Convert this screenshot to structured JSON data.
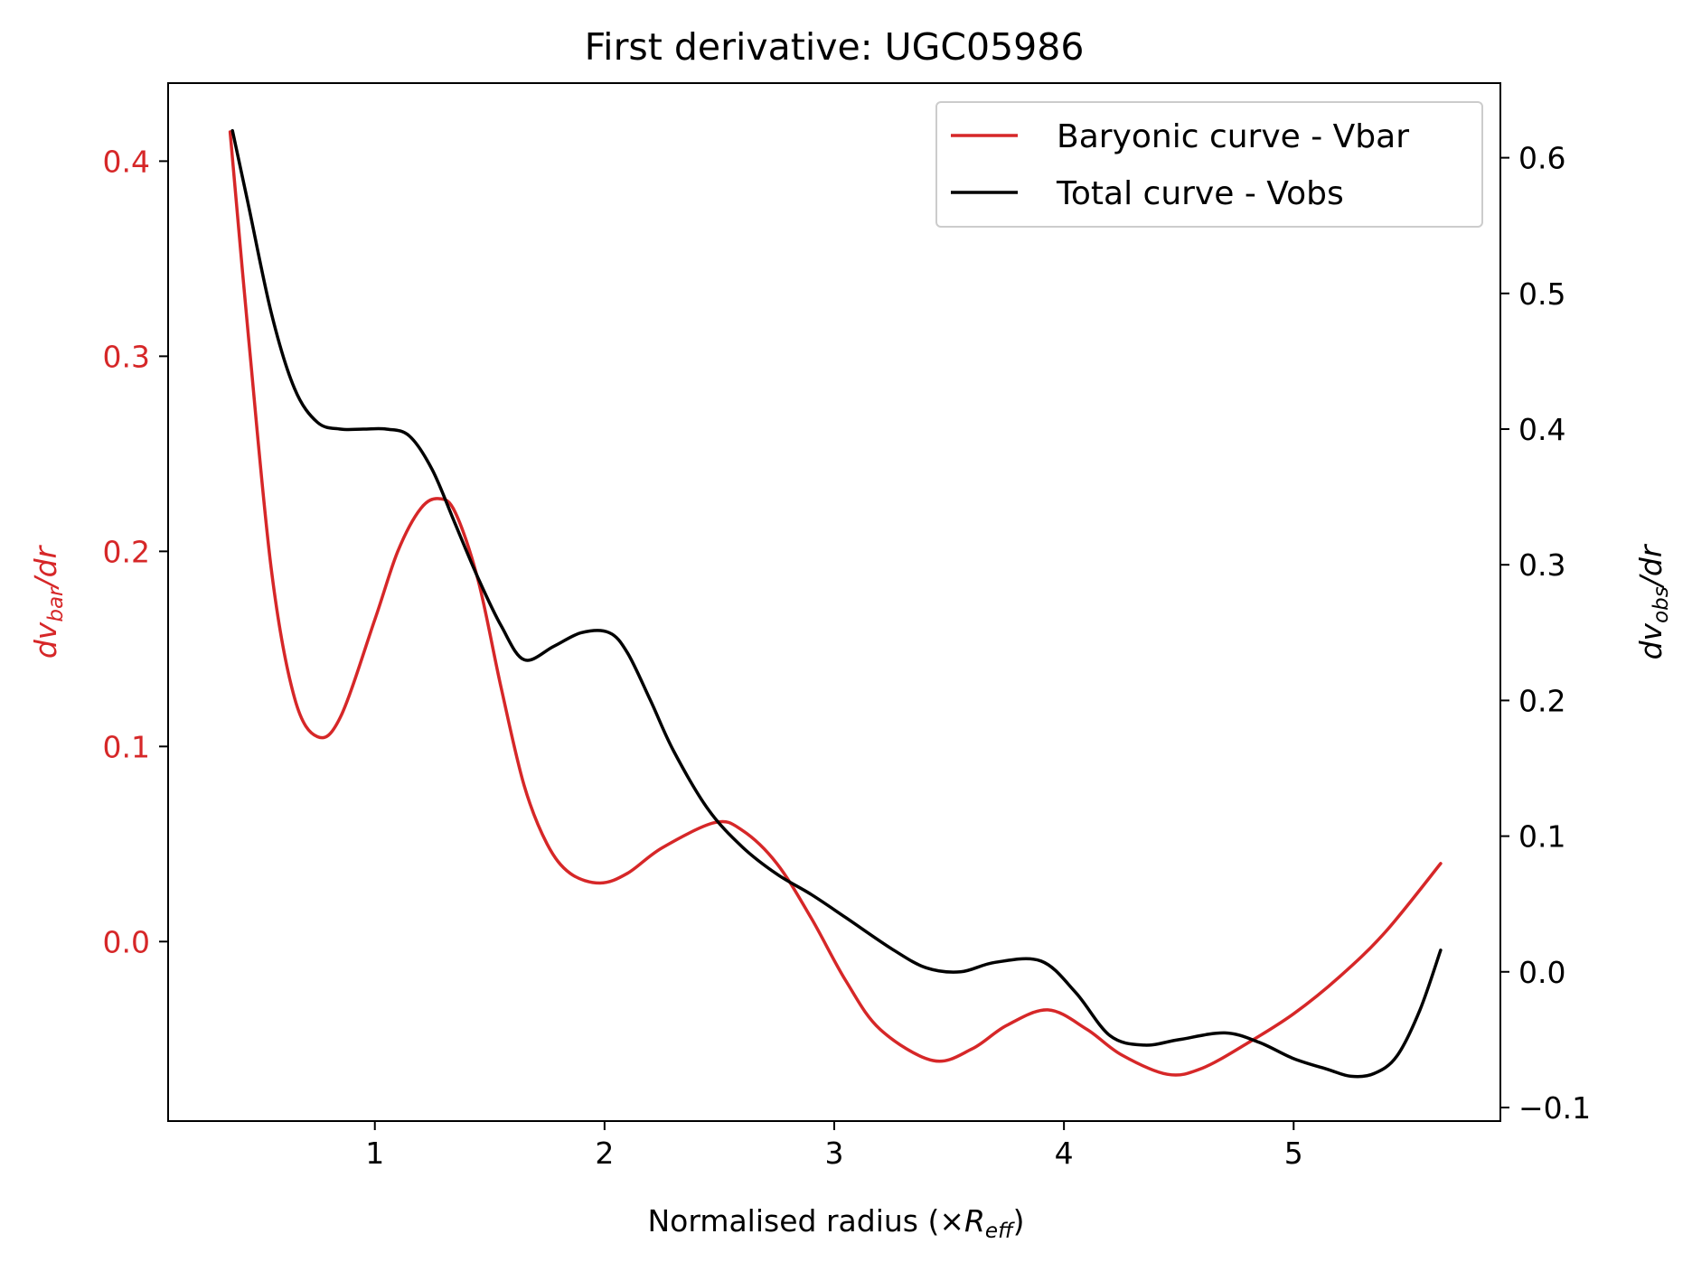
{
  "chart_data": {
    "type": "line",
    "title": "First derivative: UGC05986",
    "xlabel": {
      "main": "Normalised radius (×",
      "symbol": "R",
      "sub": "eff",
      "close": ")"
    },
    "ylabel_left": {
      "main": "dv",
      "sub": "bar",
      "tail": "/dr"
    },
    "ylabel_right": {
      "main": "dv",
      "sub": "obs",
      "tail": "/dr"
    },
    "xlim": [
      0.1,
      5.9
    ],
    "ylim_left": [
      -0.092,
      0.44
    ],
    "ylim_right": [
      -0.11,
      0.655
    ],
    "x_ticks": [
      1,
      2,
      3,
      4,
      5
    ],
    "x_tick_labels": [
      "1",
      "2",
      "3",
      "4",
      "5"
    ],
    "y_left_ticks": [
      0.0,
      0.1,
      0.2,
      0.3,
      0.4
    ],
    "y_left_tick_labels": [
      "0.0",
      "0.1",
      "0.2",
      "0.3",
      "0.4"
    ],
    "y_right_ticks": [
      -0.1,
      0.0,
      0.1,
      0.2,
      0.3,
      0.4,
      0.5,
      0.6
    ],
    "y_right_tick_labels": [
      "−0.1",
      "0.0",
      "0.1",
      "0.2",
      "0.3",
      "0.4",
      "0.5",
      "0.6"
    ],
    "grid": false,
    "legend_position": "top-right",
    "colors": {
      "vbar": "#d62728",
      "vobs": "#000000",
      "left_axis": "#d62728",
      "right_axis": "#000000"
    },
    "series": [
      {
        "name": "Baryonic curve - Vbar",
        "axis": "left",
        "color": "#d62728",
        "x": [
          0.37,
          0.45,
          0.55,
          0.65,
          0.75,
          0.85,
          1.0,
          1.1,
          1.2,
          1.28,
          1.35,
          1.45,
          1.55,
          1.65,
          1.75,
          1.85,
          1.98,
          2.1,
          2.25,
          2.48,
          2.6,
          2.75,
          2.9,
          3.05,
          3.2,
          3.43,
          3.6,
          3.75,
          3.93,
          4.1,
          4.25,
          4.45,
          4.6,
          4.8,
          5.0,
          5.2,
          5.4,
          5.64
        ],
        "y": [
          0.415,
          0.31,
          0.19,
          0.125,
          0.105,
          0.115,
          0.165,
          0.2,
          0.222,
          0.227,
          0.22,
          0.185,
          0.13,
          0.08,
          0.05,
          0.035,
          0.03,
          0.035,
          0.048,
          0.061,
          0.057,
          0.04,
          0.012,
          -0.02,
          -0.045,
          -0.061,
          -0.055,
          -0.043,
          -0.035,
          -0.045,
          -0.058,
          -0.068,
          -0.065,
          -0.052,
          -0.037,
          -0.018,
          0.005,
          0.04
        ]
      },
      {
        "name": "Total curve - Vobs",
        "axis": "right",
        "color": "#000000",
        "x": [
          0.38,
          0.45,
          0.55,
          0.65,
          0.75,
          0.85,
          0.95,
          1.05,
          1.15,
          1.25,
          1.35,
          1.45,
          1.55,
          1.65,
          1.78,
          1.9,
          2.02,
          2.1,
          2.2,
          2.3,
          2.45,
          2.6,
          2.75,
          2.9,
          3.05,
          3.25,
          3.4,
          3.55,
          3.7,
          3.9,
          4.05,
          4.2,
          4.35,
          4.5,
          4.7,
          4.85,
          5.0,
          5.15,
          5.25,
          5.35,
          5.45,
          5.55,
          5.64
        ],
        "y": [
          0.62,
          0.565,
          0.485,
          0.43,
          0.405,
          0.4,
          0.4,
          0.4,
          0.395,
          0.37,
          0.33,
          0.29,
          0.255,
          0.23,
          0.24,
          0.25,
          0.25,
          0.235,
          0.2,
          0.163,
          0.12,
          0.092,
          0.072,
          0.057,
          0.04,
          0.017,
          0.003,
          0.0,
          0.007,
          0.008,
          -0.015,
          -0.047,
          -0.054,
          -0.05,
          -0.045,
          -0.052,
          -0.064,
          -0.072,
          -0.077,
          -0.075,
          -0.062,
          -0.028,
          0.016
        ]
      }
    ]
  }
}
